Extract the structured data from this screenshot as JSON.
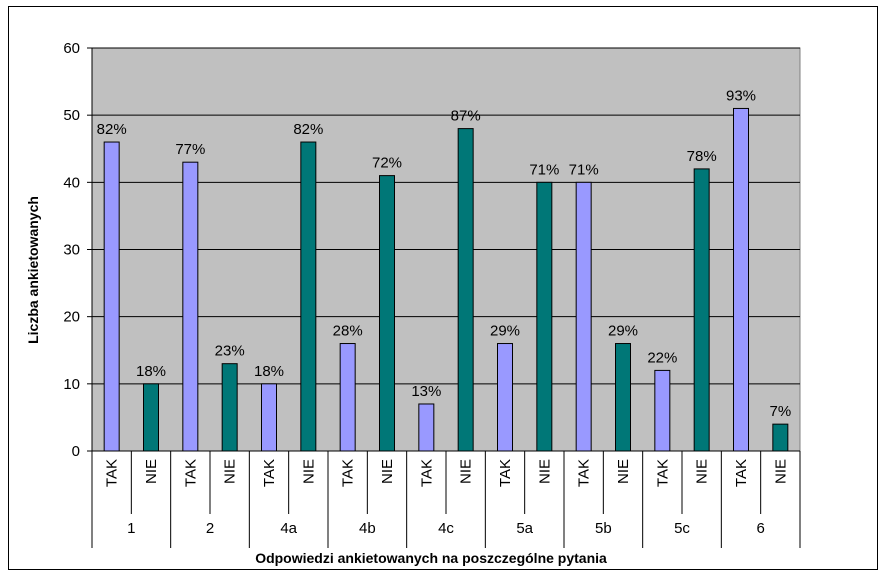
{
  "chart_data": {
    "type": "bar",
    "title": "",
    "xlabel": "Odpowiedzi ankietowanych na poszczególne pytania",
    "ylabel": "Liczba ankietowanych",
    "ylim": [
      0,
      60
    ],
    "yticks": [
      "0",
      "10",
      "20",
      "30",
      "40",
      "50",
      "60"
    ],
    "grid": true,
    "legend": "none",
    "colors": {
      "TAK": "#9999ff",
      "NIE": "#007777",
      "plot_bg": "#c0c0c0"
    },
    "bars": [
      {
        "group": "1",
        "answer": "TAK",
        "value": 46,
        "label": "82%"
      },
      {
        "group": "1",
        "answer": "NIE",
        "value": 10,
        "label": "18%"
      },
      {
        "group": "2",
        "answer": "TAK",
        "value": 43,
        "label": "77%"
      },
      {
        "group": "2",
        "answer": "NIE",
        "value": 13,
        "label": "23%"
      },
      {
        "group": "4a",
        "answer": "TAK",
        "value": 10,
        "label": "18%"
      },
      {
        "group": "4a",
        "answer": "NIE",
        "value": 46,
        "label": "82%"
      },
      {
        "group": "4b",
        "answer": "TAK",
        "value": 16,
        "label": "28%"
      },
      {
        "group": "4b",
        "answer": "NIE",
        "value": 41,
        "label": "72%"
      },
      {
        "group": "4c",
        "answer": "TAK",
        "value": 7,
        "label": "13%"
      },
      {
        "group": "4c",
        "answer": "NIE",
        "value": 48,
        "label": "87%"
      },
      {
        "group": "5a",
        "answer": "TAK",
        "value": 16,
        "label": "29%"
      },
      {
        "group": "5a",
        "answer": "NIE",
        "value": 40,
        "label": "71%"
      },
      {
        "group": "5b",
        "answer": "TAK",
        "value": 40,
        "label": "71%"
      },
      {
        "group": "5b",
        "answer": "NIE",
        "value": 16,
        "label": "29%"
      },
      {
        "group": "5c",
        "answer": "TAK",
        "value": 12,
        "label": "22%"
      },
      {
        "group": "5c",
        "answer": "NIE",
        "value": 42,
        "label": "78%"
      },
      {
        "group": "6",
        "answer": "TAK",
        "value": 51,
        "label": "93%"
      },
      {
        "group": "6",
        "answer": "NIE",
        "value": 4,
        "label": "7%"
      }
    ],
    "groups": [
      "1",
      "2",
      "4a",
      "4b",
      "4c",
      "5a",
      "5b",
      "5c",
      "6"
    ]
  }
}
